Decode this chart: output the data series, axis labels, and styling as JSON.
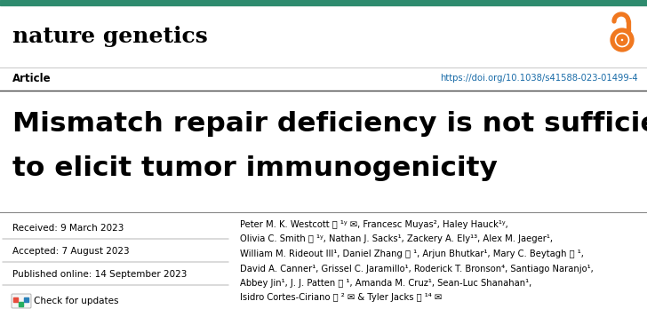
{
  "background_color": "#ffffff",
  "teal_bar_color": "#2E8B6E",
  "journal_name": "nature genetics",
  "journal_fontsize": 18,
  "open_access_color": "#F07820",
  "article_label": "Article",
  "article_fontsize": 8.5,
  "doi_text": "https://doi.org/10.1038/s41588-023-01499-4",
  "doi_color": "#1a6ca8",
  "doi_fontsize": 7.2,
  "title_line1": "Mismatch repair deficiency is not sufficient",
  "title_line2": "to elicit tumor immunogenicity",
  "title_fontsize": 22.5,
  "received_text": "Received: 9 March 2023",
  "accepted_text": "Accepted: 7 August 2023",
  "published_text": "Published online: 14 September 2023",
  "dates_fontsize": 7.5,
  "check_updates_text": "Check for updates",
  "check_updates_fontsize": 7.5,
  "authors_line1": "Peter M. K. Westcott ⓘ ¹ʸ ✉, Francesc Muyas², Haley Hauck¹ʸ,",
  "authors_line2": "Olivia C. Smith ⓘ ¹ʸ, Nathan J. Sacks¹, Zackery A. Ely¹³, Alex M. Jaeger¹,",
  "authors_line3": "William M. Rideout III¹, Daniel Zhang ⓘ ¹, Arjun Bhutkar¹, Mary C. Beytagh ⓘ ¹,",
  "authors_line4": "David A. Canner¹, Grissel C. Jaramillo¹, Roderick T. Bronson⁴, Santiago Naranjo¹,",
  "authors_line5": "Abbey Jin¹, J. J. Patten ⓘ ¹, Amanda M. Cruz¹, Sean-Luc Shanahan¹,",
  "authors_line6": "Isidro Cortes-Ciriano ⓘ ² ✉ & Tyler Jacks ⓘ ¹⁴ ✉",
  "authors_fontsize": 7.2
}
